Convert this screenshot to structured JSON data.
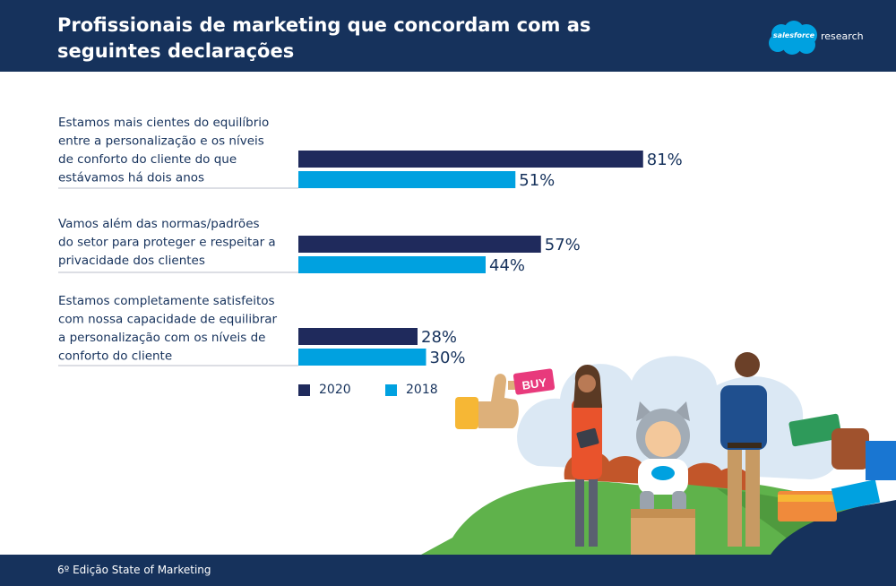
{
  "header": {
    "title": "Profissionais de marketing que concordam com as seguintes declarações",
    "brand": {
      "cloud_text": "salesforce",
      "suffix": "research"
    }
  },
  "footer": {
    "text": "6º Edição State of Marketing"
  },
  "colors": {
    "header_bg": "#16325c",
    "series_2020": "#1f2a5c",
    "series_2018": "#00a1e0",
    "text": "#16325c"
  },
  "chart_data": {
    "type": "bar",
    "orientation": "horizontal",
    "categories": [
      [
        "Estamos mais cientes do equilíbrio",
        "entre a personalização e os níveis",
        "de conforto do cliente do que",
        "estávamos há dois anos"
      ],
      [
        "Vamos além das normas/padrões",
        "do setor para proteger e respeitar a",
        "privacidade dos clientes"
      ],
      [
        "Estamos completamente satisfeitos",
        "com nossa capacidade de equilibrar",
        "a personalização com os níveis de",
        "conforto do cliente"
      ]
    ],
    "series": [
      {
        "name": "2020",
        "values": [
          81,
          57,
          28
        ],
        "labels": [
          "81%",
          "57%",
          "28%"
        ],
        "color": "#1f2a5c"
      },
      {
        "name": "2018",
        "values": [
          51,
          44,
          30
        ],
        "labels": [
          "51%",
          "44%",
          "30%"
        ],
        "color": "#00a1e0"
      }
    ],
    "xlim": [
      0,
      100
    ],
    "legend": "bottom",
    "grid": false
  },
  "illustration": {
    "sign_text": "BUY"
  }
}
